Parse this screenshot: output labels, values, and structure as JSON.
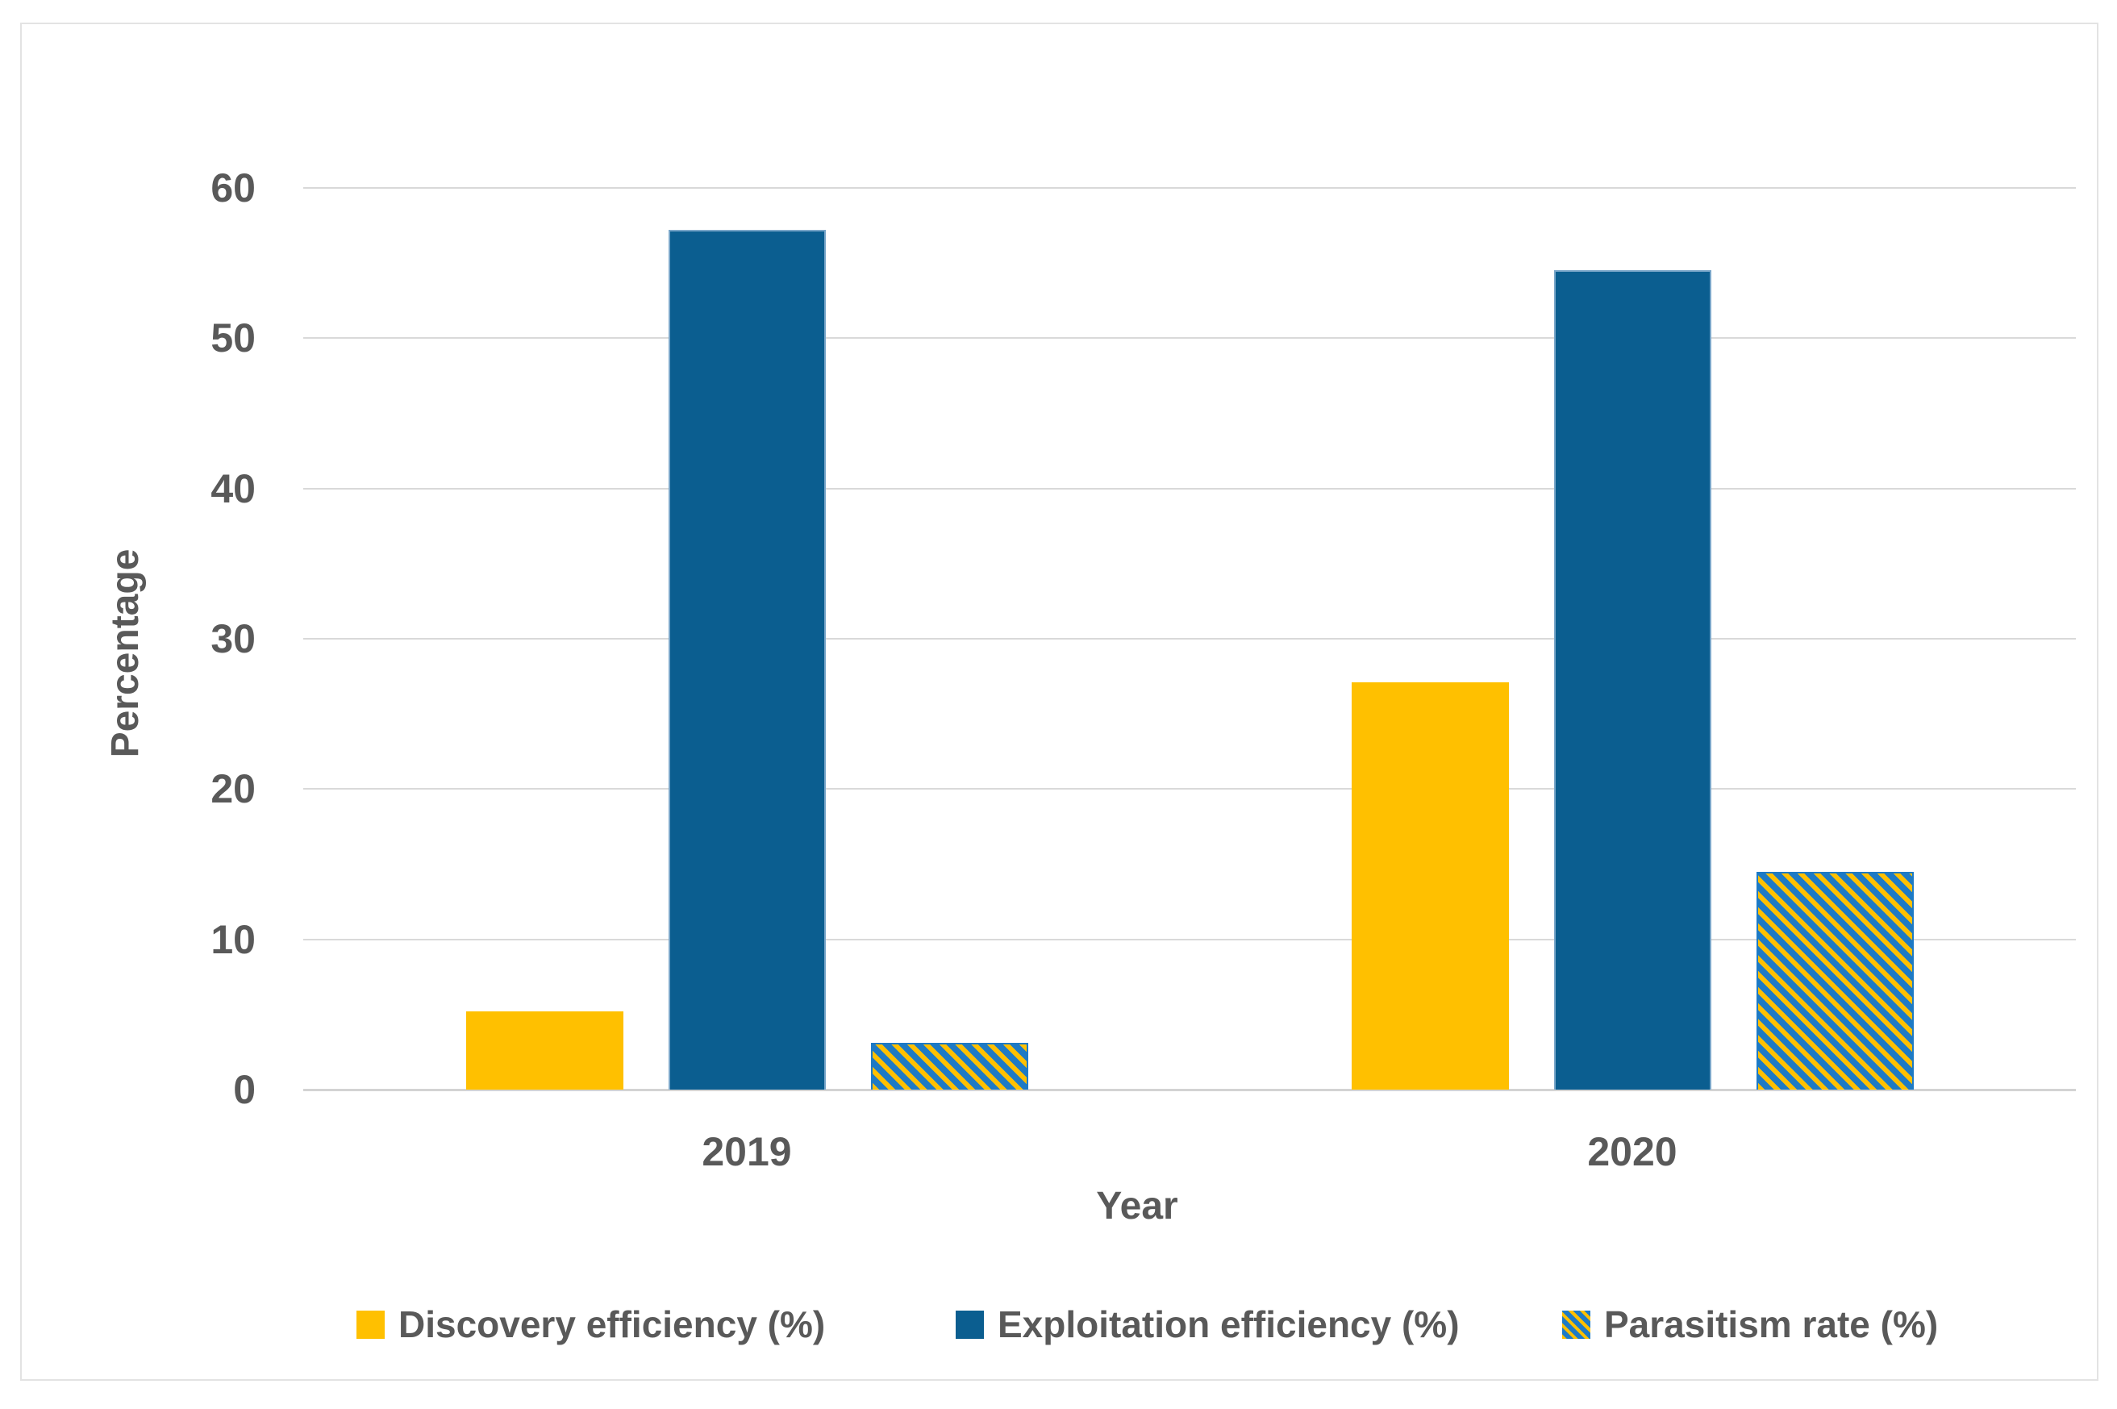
{
  "figure": {
    "ylabel": "Percentage",
    "xlabel": "Year",
    "yticks": [
      60,
      50,
      40,
      30,
      20,
      10,
      0
    ]
  },
  "chart_data": {
    "type": "bar",
    "categories": [
      "2019",
      "2020"
    ],
    "series": [
      {
        "name": "Discovery efficiency (%)",
        "key": "discovery",
        "values": [
          5.2,
          27.1
        ],
        "color": "#FFC000",
        "pattern": "solid"
      },
      {
        "name": "Exploitation efficiency (%)",
        "key": "exploitation",
        "values": [
          57.2,
          54.5
        ],
        "color": "#0B5E90",
        "pattern": "solid"
      },
      {
        "name": "Parasitism rate (%)",
        "key": "parasitism",
        "values": [
          3.1,
          14.5
        ],
        "color": "#1E7AC5",
        "pattern": "diagonal-stripes",
        "stripe_color": "#FFC000"
      }
    ],
    "title": "",
    "xlabel": "Year",
    "ylabel": "Percentage",
    "ylim": [
      0,
      60
    ],
    "ytick_step": 10,
    "grid": true,
    "legend_position": "bottom"
  },
  "colors": {
    "discovery": "#FFC000",
    "exploitation": "#0B5E90",
    "parasitism_base": "#1E7AC5",
    "parasitism_stripe": "#FFC000",
    "gridline": "#D9D9D9",
    "text": "#595959",
    "frame_border": "#E3E3E3",
    "background": "#FFFFFF"
  }
}
